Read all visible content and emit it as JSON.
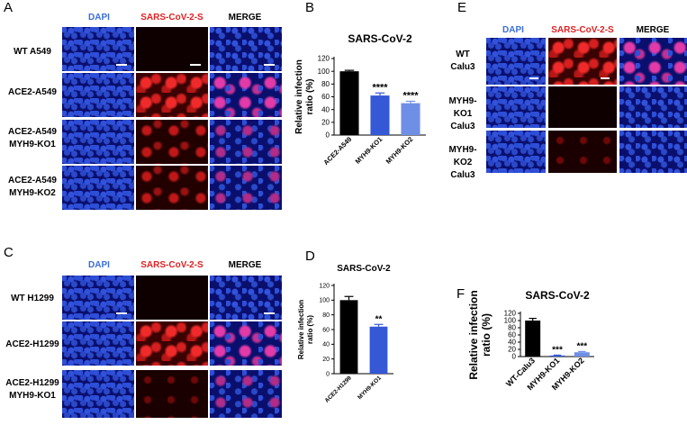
{
  "panels": {
    "A": {
      "letter": "A",
      "columns": [
        "DAPI",
        "SARS-CoV-2-S",
        "MERGE"
      ],
      "rows": [
        {
          "line1": "WT A549",
          "line2": ""
        },
        {
          "line1": "ACE2-A549",
          "line2": ""
        },
        {
          "line1": "ACE2-A549",
          "line2": "MYH9-KO1"
        },
        {
          "line1": "ACE2-A549",
          "line2": "MYH9-KO2"
        }
      ]
    },
    "B": {
      "letter": "B"
    },
    "C": {
      "letter": "C",
      "columns": [
        "DAPI",
        "SARS-CoV-2-S",
        "MERGE"
      ],
      "rows": [
        {
          "line1": "WT H1299",
          "line2": ""
        },
        {
          "line1": "ACE2-H1299",
          "line2": ""
        },
        {
          "line1": "ACE2-H1299",
          "line2": "MYH9-KO1"
        }
      ]
    },
    "D": {
      "letter": "D"
    },
    "E": {
      "letter": "E",
      "columns": [
        "DAPI",
        "SARS-CoV-2-S",
        "MERGE"
      ],
      "rows": [
        {
          "line1": "WT",
          "line2": "Calu3",
          "line3": ""
        },
        {
          "line1": "MYH9-",
          "line2": "KO1",
          "line3": "Calu3"
        },
        {
          "line1": "MYH9-",
          "line2": "KO2",
          "line3": "Calu3"
        }
      ]
    },
    "F": {
      "letter": "F"
    }
  },
  "colors": {
    "dapi_label": "#3a6fd8",
    "sars_label": "#e02020"
  },
  "chart_data": [
    {
      "panel": "B",
      "type": "bar",
      "title": "SARS-CoV-2",
      "ylabel": "Relative infection ratio (%)",
      "ylabel_lines": [
        "Relative infection",
        "ratio (%)"
      ],
      "categories": [
        "ACE2-A549",
        "MYH9-KO1",
        "MYH9-KO2"
      ],
      "values": [
        100,
        62,
        50
      ],
      "errors": [
        1.5,
        4,
        3
      ],
      "significance": [
        "",
        "****",
        "****"
      ],
      "bar_colors": [
        "#000000",
        "#3458d6",
        "#6f8fe6"
      ],
      "ylim": [
        0,
        120
      ],
      "yticks": [
        0,
        20,
        40,
        60,
        80,
        100,
        120
      ]
    },
    {
      "panel": "D",
      "type": "bar",
      "title": "SARS-CoV-2",
      "ylabel": "Relative infection ratio (%)",
      "ylabel_lines": [
        "Relative infection",
        "ratio (%)"
      ],
      "categories": [
        "ACE2-H1299",
        "MYH9-KO1"
      ],
      "values": [
        100,
        64
      ],
      "errors": [
        5,
        3
      ],
      "significance": [
        "",
        "**"
      ],
      "bar_colors": [
        "#000000",
        "#3458d6"
      ],
      "ylim": [
        0,
        120
      ],
      "yticks": [
        0,
        20,
        40,
        60,
        80,
        100,
        120
      ]
    },
    {
      "panel": "F",
      "type": "bar",
      "title": "SARS-CoV-2",
      "ylabel": "Relative infection ratio (%)",
      "ylabel_lines": [
        "Relative infection",
        "ratio (%)"
      ],
      "categories": [
        "WT-Calu3",
        "MYH9-KO1",
        "MYH9-KO2"
      ],
      "values": [
        100,
        3,
        12
      ],
      "errors": [
        6,
        1,
        2
      ],
      "significance": [
        "",
        "***",
        "***"
      ],
      "bar_colors": [
        "#000000",
        "#3458d6",
        "#6f8fe6"
      ],
      "ylim": [
        0,
        120
      ],
      "yticks": [
        0,
        20,
        40,
        60,
        80,
        100,
        120
      ]
    }
  ]
}
